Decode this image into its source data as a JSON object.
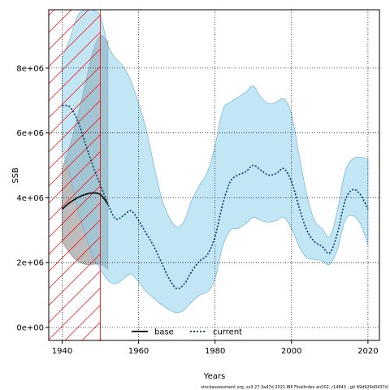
{
  "chart_data": {
    "type": "area",
    "xlabel": "Years",
    "ylabel": "SSB",
    "xlim": [
      1936.5,
      2023
    ],
    "ylim": [
      -400000,
      9800000
    ],
    "x_ticks": [
      1940,
      1960,
      1980,
      2000,
      2020
    ],
    "x_tick_labels": [
      "1940",
      "1960",
      "1980",
      "2000",
      "2020"
    ],
    "y_ticks": [
      0,
      2000000,
      4000000,
      6000000,
      8000000
    ],
    "y_tick_labels": [
      "0e+00",
      "2e+06",
      "4e+06",
      "6e+06",
      "8e+06"
    ],
    "grid": true,
    "legend": {
      "placement": "bottom-center",
      "entries": [
        {
          "label": "base",
          "color": "#000000",
          "style": "solid"
        },
        {
          "label": "current",
          "color": "#003a63",
          "style": "dotted"
        }
      ]
    },
    "hatched_period": {
      "from": 1936.5,
      "to": 1950,
      "color": "#ff0000"
    },
    "series": [
      {
        "name": "base",
        "color": "#000000",
        "band_color": "#a0a0a0",
        "x": [
          1940,
          1942,
          1944,
          1946,
          1948,
          1950,
          1952
        ],
        "values": [
          3650000,
          3850000,
          4000000,
          4100000,
          4150000,
          4100000,
          3800000
        ],
        "band_lower": [
          2650000,
          2300000,
          2050000,
          1950000,
          1950000,
          1950000,
          1800000
        ],
        "band_upper": [
          4900000,
          5600000,
          6500000,
          7500000,
          8500000,
          9000000,
          8800000
        ]
      },
      {
        "name": "current",
        "color": "#003a63",
        "band_color": "#87ceeb",
        "x": [
          1940,
          1942,
          1944,
          1946,
          1948,
          1950,
          1952,
          1954,
          1956,
          1958,
          1960,
          1962,
          1964,
          1966,
          1968,
          1970,
          1972,
          1974,
          1976,
          1978,
          1980,
          1982,
          1984,
          1986,
          1988,
          1990,
          1992,
          1994,
          1996,
          1998,
          2000,
          2002,
          2004,
          2006,
          2008,
          2010,
          2012,
          2014,
          2016,
          2018,
          2020
        ],
        "values": [
          6850000,
          6800000,
          6400000,
          5700000,
          5000000,
          4400000,
          3800000,
          3350000,
          3450000,
          3600000,
          3300000,
          2900000,
          2500000,
          2000000,
          1500000,
          1200000,
          1350000,
          1750000,
          2050000,
          2250000,
          2800000,
          3800000,
          4500000,
          4700000,
          4800000,
          5000000,
          4850000,
          4700000,
          4750000,
          4900000,
          4500000,
          3700000,
          3000000,
          2650000,
          2500000,
          2300000,
          2900000,
          3900000,
          4250000,
          4100000,
          3650000
        ],
        "band_lower": [
          5500000,
          4700000,
          3700000,
          2900000,
          2200000,
          1800000,
          1450000,
          1350000,
          1500000,
          1650000,
          1400000,
          1100000,
          900000,
          700000,
          550000,
          450000,
          550000,
          800000,
          1000000,
          1100000,
          1500000,
          2500000,
          3000000,
          3050000,
          3200000,
          3400000,
          3300000,
          3250000,
          3300000,
          3400000,
          3050000,
          2500000,
          2150000,
          2100000,
          2050000,
          1950000,
          2400000,
          3300000,
          3450000,
          3200000,
          2550000
        ],
        "band_upper": [
          8300000,
          8900000,
          9600000,
          9800000,
          9800000,
          9600000,
          8700000,
          8300000,
          8050000,
          7600000,
          6900000,
          6100000,
          5000000,
          4000000,
          3400000,
          3100000,
          3300000,
          3950000,
          4400000,
          4800000,
          5600000,
          6700000,
          6950000,
          7100000,
          7250000,
          7450000,
          7100000,
          6900000,
          6950000,
          7050000,
          6600000,
          5300000,
          4100000,
          3300000,
          3050000,
          2800000,
          3600000,
          4800000,
          5200000,
          5250000,
          5200000
        ]
      }
    ]
  },
  "footer_text": "stockassessment.org, ss3 27.3a47d 2021 IBP FinalIndex an002, r14843 , git 69d926d0437d"
}
